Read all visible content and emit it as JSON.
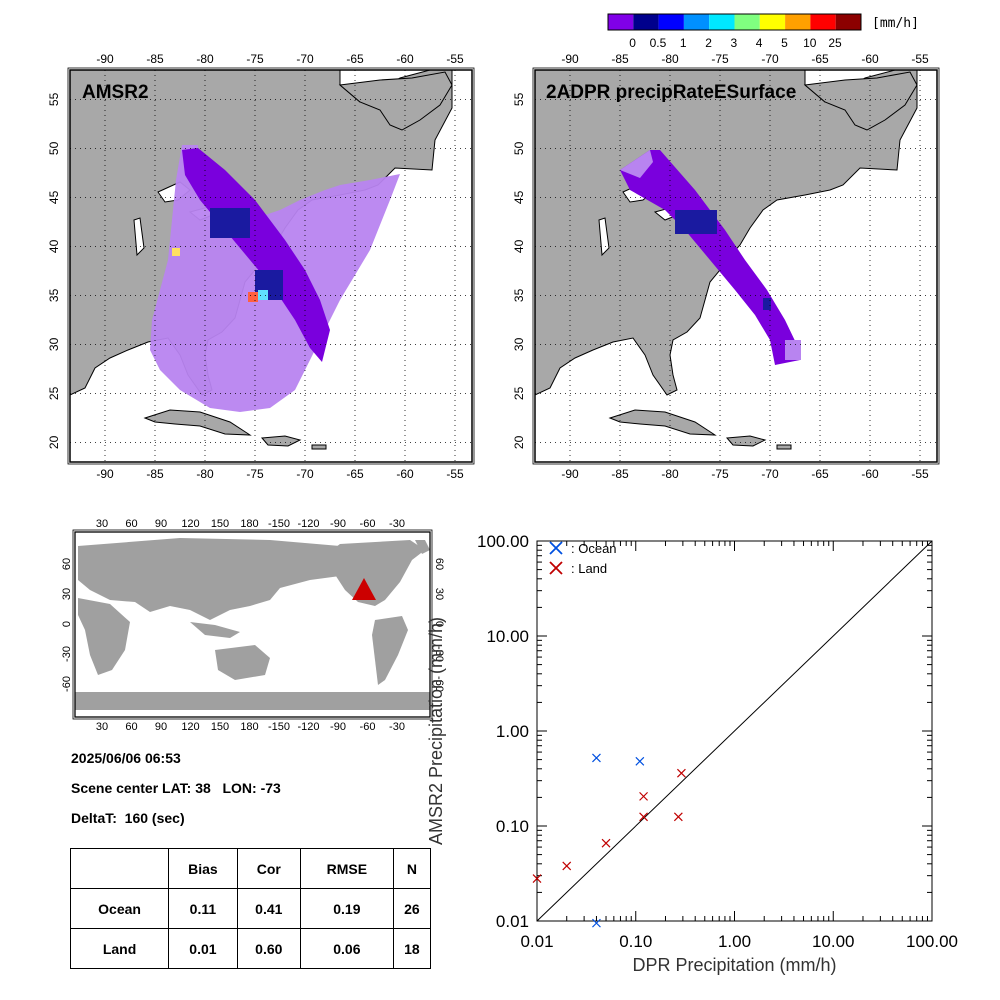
{
  "colorbar": {
    "unit": "[mm/h]",
    "labels": [
      "0",
      "0.5",
      "1",
      "2",
      "3",
      "4",
      "5",
      "10",
      "25"
    ],
    "colors": [
      "#8000e8",
      "#00008c",
      "#0000ff",
      "#0090ff",
      "#00e8ff",
      "#80ff80",
      "#ffff00",
      "#ffa000",
      "#ff0000",
      "#8c0000"
    ]
  },
  "maps": [
    {
      "title": "AMSR2"
    },
    {
      "title": "2ADPR precipRateESurface"
    }
  ],
  "map_axes": {
    "lon_labels": [
      "-90",
      "-85",
      "-80",
      "-75",
      "-70",
      "-65",
      "-60",
      "-55"
    ],
    "lat_labels": [
      "20",
      "25",
      "30",
      "35",
      "40",
      "45",
      "50",
      "55"
    ]
  },
  "globe_axes": {
    "lon_labels": [
      "30",
      "60",
      "90",
      "120",
      "150",
      "180",
      "-150",
      "-120",
      "-90",
      "-60",
      "-30"
    ],
    "lat_labels": [
      "60",
      "30",
      "0",
      "-30",
      "-60"
    ]
  },
  "info": {
    "datetime": "2025/06/06 06:53",
    "scene_center": "Scene center LAT: 38   LON: -73",
    "delta": "DeltaT:  160 (sec)"
  },
  "stats_table": {
    "headers": [
      "",
      "Bias",
      "Cor",
      "RMSE",
      "N"
    ],
    "rows": [
      [
        "Ocean",
        "0.11",
        "0.41",
        "0.19",
        "26"
      ],
      [
        "Land",
        "0.01",
        "0.60",
        "0.06",
        "18"
      ]
    ]
  },
  "chart_data": {
    "type": "scatter",
    "xlabel": "DPR Precipitation (mm/h)",
    "ylabel": "AMSR2 Precipitation (mm/h)",
    "xscale": "log",
    "yscale": "log",
    "xlim": [
      0.01,
      100
    ],
    "ylim": [
      0.01,
      100
    ],
    "tick_labels": [
      "0.01",
      "0.10",
      "1.00",
      "10.00",
      "100.00"
    ],
    "legend_placement": "top-left",
    "series": [
      {
        "name": ": Ocean",
        "color": "#0050e0",
        "points": [
          [
            0.04,
            0.52
          ],
          [
            0.11,
            0.48
          ],
          [
            0.04,
            0.0095
          ]
        ]
      },
      {
        "name": ": Land",
        "color": "#c00000",
        "points": [
          [
            0.01,
            0.028
          ],
          [
            0.02,
            0.038
          ],
          [
            0.05,
            0.066
          ],
          [
            0.12,
            0.125
          ],
          [
            0.12,
            0.205
          ],
          [
            0.27,
            0.125
          ],
          [
            0.29,
            0.36
          ]
        ]
      }
    ]
  }
}
